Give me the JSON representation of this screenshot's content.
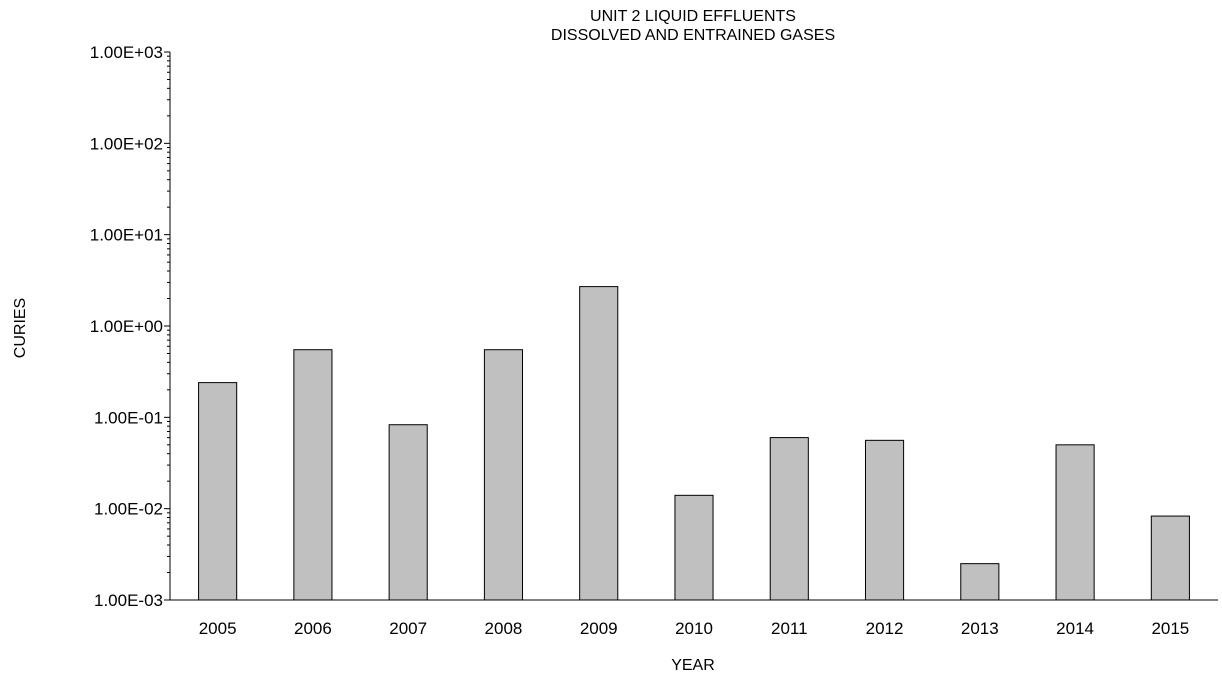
{
  "chart_data": {
    "type": "bar",
    "title_lines": [
      "UNIT 2 LIQUID EFFLUENTS",
      "DISSOLVED AND ENTRAINED GASES"
    ],
    "xlabel": "YEAR",
    "ylabel": "CURIES",
    "yscale": "log",
    "ylim": [
      0.001,
      1000
    ],
    "y_tick_values": [
      0.001,
      0.01,
      0.1,
      1,
      10,
      100,
      1000
    ],
    "y_tick_labels": [
      "1.00E-03",
      "1.00E-02",
      "1.00E-01",
      "1.00E+00",
      "1.00E+01",
      "1.00E+02",
      "1.00E+03"
    ],
    "categories": [
      "2005",
      "2006",
      "2007",
      "2008",
      "2009",
      "2010",
      "2011",
      "2012",
      "2013",
      "2014",
      "2015"
    ],
    "values": [
      0.24,
      0.55,
      0.083,
      0.55,
      2.7,
      0.014,
      0.06,
      0.056,
      0.0025,
      0.05,
      0.0083
    ],
    "bar_color": "#c0c0c0",
    "bar_edge_color": "#000000",
    "grid": false,
    "legend": false
  }
}
